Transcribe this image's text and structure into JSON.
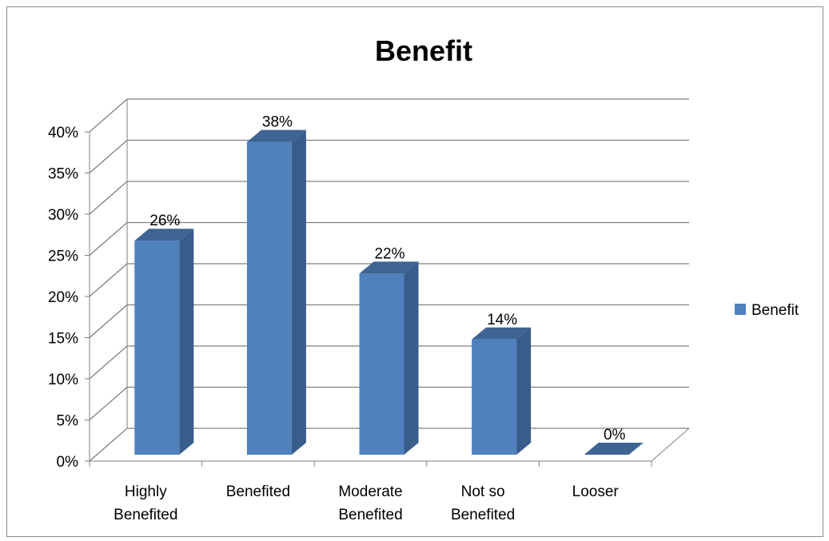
{
  "chart_data": {
    "type": "bar",
    "title": "Benefit",
    "categories": [
      [
        "Highly",
        "Benefited"
      ],
      [
        "Benefited"
      ],
      [
        "Moderate",
        "Benefited"
      ],
      [
        "Not so",
        "Benefited"
      ],
      [
        "Looser"
      ]
    ],
    "series": [
      {
        "name": "Benefit",
        "values": [
          26,
          38,
          22,
          14,
          0
        ]
      }
    ],
    "data_labels": [
      "26%",
      "38%",
      "22%",
      "14%",
      "0%"
    ],
    "y_ticks": [
      "0%",
      "5%",
      "10%",
      "15%",
      "20%",
      "25%",
      "30%",
      "35%",
      "40%"
    ],
    "ylim": [
      0,
      40
    ],
    "grid": true,
    "legend_position": "right",
    "colors": {
      "bar_front": "#4F81BD",
      "bar_side": "#385D8A",
      "bar_top": "#3E6494",
      "grid": "#7f7f7f"
    }
  }
}
